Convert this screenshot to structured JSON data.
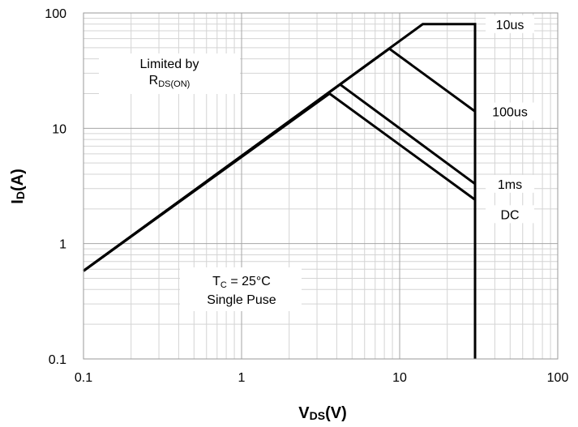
{
  "chart_data": {
    "type": "line",
    "x_scale": "log",
    "y_scale": "log",
    "xlim": [
      0.1,
      100
    ],
    "ylim": [
      0.1,
      100
    ],
    "grid": true,
    "x_ticks": [
      "0.1",
      "1",
      "10",
      "100"
    ],
    "y_ticks": [
      "100",
      "10",
      "1",
      "0.1"
    ],
    "xlabel": {
      "main": "V",
      "sub": "DS",
      "unit": "(V)"
    },
    "ylabel": {
      "main": "I",
      "sub": "D",
      "unit": "(A)"
    },
    "annotations": {
      "limited_line1": "Limited by",
      "limited_R": "R",
      "limited_sub": "DS(ON)",
      "tc_T": "T",
      "tc_sub": "C",
      "tc_rest": " = 25°C",
      "single": "Single Puse"
    },
    "series": [
      {
        "name": "10us",
        "x": [
          0.1,
          14,
          30,
          30
        ],
        "y": [
          0.58,
          80,
          80,
          0.1
        ]
      },
      {
        "name": "100us",
        "x": [
          0.1,
          8.6,
          30
        ],
        "y": [
          0.58,
          49,
          14
        ]
      },
      {
        "name": "1ms",
        "x": [
          0.1,
          4.2,
          30
        ],
        "y": [
          0.58,
          24,
          3.3
        ]
      },
      {
        "name": "DC",
        "x": [
          0.1,
          3.6,
          30
        ],
        "y": [
          0.58,
          20,
          2.4
        ]
      }
    ]
  }
}
